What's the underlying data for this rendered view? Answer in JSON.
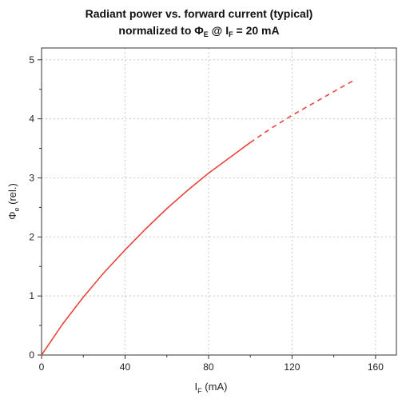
{
  "chart_data": {
    "type": "line",
    "title_line1": "Radiant power vs. forward current (typical)",
    "title_line2": {
      "prefix": "normalized to Φ",
      "sub1": "E",
      "middle": " @ I",
      "sub2": "F",
      "suffix": " = 20 mA"
    },
    "xlabel": {
      "main": "I",
      "sub": "F",
      "unit": " (mA)"
    },
    "ylabel": {
      "main": "Φ",
      "sub": "e",
      "unit": " (rel.)"
    },
    "xlim": [
      0,
      170
    ],
    "ylim": [
      0,
      5.2
    ],
    "xticks": [
      "0",
      "40",
      "80",
      "120",
      "160"
    ],
    "yticks": [
      "0",
      "1",
      "2",
      "3",
      "4",
      "5"
    ],
    "grid": true,
    "line_color": "#e8453c",
    "series": [
      {
        "style": "solid",
        "x": [
          0,
          10,
          20,
          30,
          40,
          50,
          60,
          70,
          80,
          90,
          100
        ],
        "y": [
          0,
          0.52,
          0.98,
          1.4,
          1.78,
          2.14,
          2.48,
          2.79,
          3.08,
          3.34,
          3.6
        ]
      },
      {
        "style": "dashed",
        "x": [
          100,
          110,
          120,
          130,
          140,
          150
        ],
        "y": [
          3.6,
          3.84,
          4.06,
          4.26,
          4.46,
          4.66
        ]
      }
    ]
  }
}
